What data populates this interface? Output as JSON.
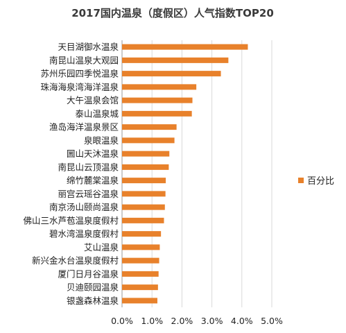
{
  "chart_data": {
    "type": "bar",
    "orientation": "horizontal",
    "title": "2017国内温泉（度假区）人气指数TOP20",
    "categories": [
      "天目湖御水温泉",
      "南昆山温泉大观园",
      "苏州乐园四季悦温泉",
      "珠海海泉湾海洋温泉",
      "大午温泉会馆",
      "泰山温泉城",
      "渔岛海洋温泉景区",
      "泉眼温泉",
      "圌山天沐温泉",
      "南昆山云顶温泉",
      "绵竹麓棠温泉",
      "丽宫云瑶谷温泉",
      "南京汤山颐尚温泉",
      "佛山三水芦苞温泉度假村",
      "碧水湾温泉度假村",
      "艾山温泉",
      "新兴金水台温泉度假村",
      "厦门日月谷温泉",
      "贝迪颐园温泉",
      "银盏森林温泉"
    ],
    "series": [
      {
        "name": "百分比",
        "values": [
          4.2,
          3.55,
          3.3,
          2.48,
          2.35,
          2.33,
          1.82,
          1.75,
          1.58,
          1.56,
          1.46,
          1.45,
          1.43,
          1.4,
          1.3,
          1.26,
          1.24,
          1.22,
          1.2,
          1.18
        ]
      }
    ],
    "xlim": [
      0,
      5
    ],
    "x_ticks": [
      "0.0%",
      "1.0%",
      "2.0%",
      "3.0%",
      "4.0%",
      "5.0%"
    ],
    "grid": "vertical",
    "legend": "right",
    "color": "#E8812B"
  }
}
